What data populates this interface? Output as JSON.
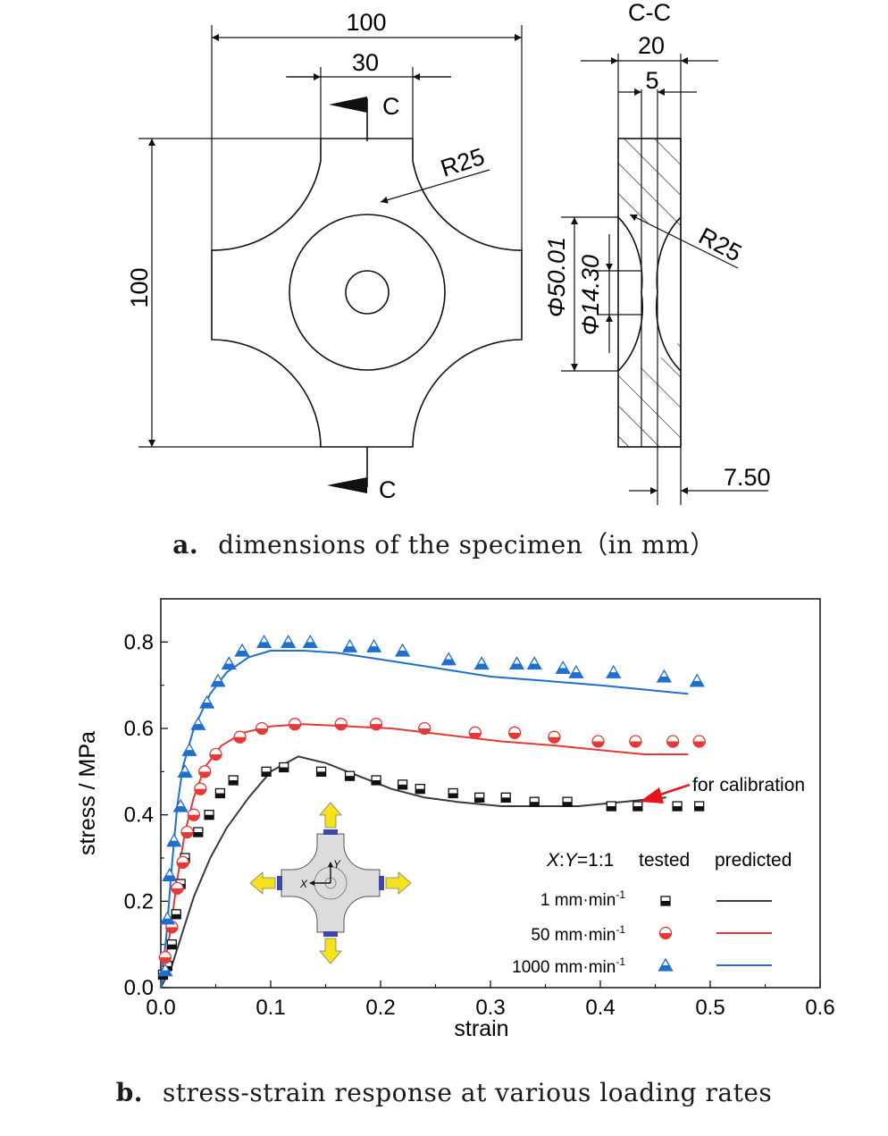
{
  "figure_a": {
    "caption_letter": "a.",
    "caption_text": "dimensions of the specimen（in mm）",
    "dims": {
      "width_top": "100",
      "arm_width": "30",
      "section_top": "C",
      "section_bottom": "C",
      "radius_plan": "R25",
      "height_left": "100",
      "section_title": "C-C",
      "thickness": "20",
      "center_thickness": "5",
      "radius_section": "R25",
      "dia_outer": "Φ50.01",
      "dia_inner": "Φ14.30",
      "offset": "7.50"
    }
  },
  "figure_b": {
    "caption_letter": "b.",
    "caption_text": "stress-strain response at various loading rates",
    "legend": {
      "ratio": "X:Y=1:1",
      "col_tested": "tested",
      "col_predicted": "predicted",
      "rows": [
        {
          "label": "1 mm·min",
          "sup": "-1"
        },
        {
          "label": "50 mm·min",
          "sup": "-1"
        },
        {
          "label": "1000 mm·min",
          "sup": "-1"
        }
      ]
    },
    "annotation": "for calibration",
    "inset": {
      "x_label": "X",
      "y_label": "Y"
    },
    "colors": {
      "s1": "#3a3a3a",
      "s50": "#e53935",
      "s1000": "#1e6fd0",
      "arrow": "#e8141a",
      "inset_arrow": "#f5e21b"
    }
  },
  "chart_data": {
    "type": "line",
    "title": "",
    "xlabel": "strain",
    "ylabel": "stress / MPa",
    "xlim": [
      0.0,
      0.6
    ],
    "ylim": [
      0.0,
      0.9
    ],
    "xticks": [
      "0.0",
      "0.1",
      "0.2",
      "0.3",
      "0.4",
      "0.5",
      "0.6"
    ],
    "yticks": [
      "0.0",
      "0.2",
      "0.4",
      "0.6",
      "0.8"
    ],
    "grid": false,
    "series": [
      {
        "name": "1 mm·min-1",
        "tested": [
          [
            0.002,
            0.03
          ],
          [
            0.006,
            0.05
          ],
          [
            0.01,
            0.1
          ],
          [
            0.014,
            0.17
          ],
          [
            0.018,
            0.24
          ],
          [
            0.022,
            0.3
          ],
          [
            0.034,
            0.36
          ],
          [
            0.044,
            0.4
          ],
          [
            0.054,
            0.45
          ],
          [
            0.066,
            0.48
          ],
          [
            0.096,
            0.5
          ],
          [
            0.112,
            0.51
          ],
          [
            0.146,
            0.5
          ],
          [
            0.172,
            0.49
          ],
          [
            0.196,
            0.48
          ],
          [
            0.22,
            0.47
          ],
          [
            0.236,
            0.46
          ],
          [
            0.266,
            0.45
          ],
          [
            0.29,
            0.44
          ],
          [
            0.314,
            0.44
          ],
          [
            0.34,
            0.43
          ],
          [
            0.37,
            0.43
          ],
          [
            0.41,
            0.42
          ],
          [
            0.434,
            0.42
          ],
          [
            0.47,
            0.42
          ],
          [
            0.49,
            0.42
          ]
        ],
        "predicted": [
          [
            0.0,
            0.0
          ],
          [
            0.01,
            0.05
          ],
          [
            0.02,
            0.13
          ],
          [
            0.03,
            0.21
          ],
          [
            0.045,
            0.3
          ],
          [
            0.06,
            0.37
          ],
          [
            0.08,
            0.44
          ],
          [
            0.1,
            0.5
          ],
          [
            0.125,
            0.535
          ],
          [
            0.15,
            0.52
          ],
          [
            0.18,
            0.49
          ],
          [
            0.21,
            0.46
          ],
          [
            0.24,
            0.44
          ],
          [
            0.27,
            0.43
          ],
          [
            0.31,
            0.42
          ],
          [
            0.34,
            0.42
          ],
          [
            0.38,
            0.42
          ],
          [
            0.42,
            0.43
          ],
          [
            0.46,
            0.44
          ]
        ]
      },
      {
        "name": "50 mm·min-1",
        "tested": [
          [
            0.004,
            0.07
          ],
          [
            0.01,
            0.14
          ],
          [
            0.015,
            0.23
          ],
          [
            0.02,
            0.29
          ],
          [
            0.024,
            0.36
          ],
          [
            0.03,
            0.4
          ],
          [
            0.036,
            0.46
          ],
          [
            0.04,
            0.5
          ],
          [
            0.05,
            0.54
          ],
          [
            0.072,
            0.58
          ],
          [
            0.092,
            0.6
          ],
          [
            0.122,
            0.61
          ],
          [
            0.164,
            0.61
          ],
          [
            0.196,
            0.61
          ],
          [
            0.24,
            0.6
          ],
          [
            0.286,
            0.59
          ],
          [
            0.322,
            0.59
          ],
          [
            0.358,
            0.58
          ],
          [
            0.398,
            0.57
          ],
          [
            0.432,
            0.57
          ],
          [
            0.466,
            0.57
          ],
          [
            0.49,
            0.57
          ]
        ],
        "predicted": [
          [
            0.0,
            0.0
          ],
          [
            0.008,
            0.12
          ],
          [
            0.015,
            0.25
          ],
          [
            0.022,
            0.36
          ],
          [
            0.03,
            0.44
          ],
          [
            0.04,
            0.51
          ],
          [
            0.055,
            0.56
          ],
          [
            0.075,
            0.59
          ],
          [
            0.1,
            0.605
          ],
          [
            0.13,
            0.61
          ],
          [
            0.17,
            0.605
          ],
          [
            0.21,
            0.6
          ],
          [
            0.26,
            0.585
          ],
          [
            0.31,
            0.57
          ],
          [
            0.36,
            0.56
          ],
          [
            0.4,
            0.55
          ],
          [
            0.44,
            0.54
          ],
          [
            0.48,
            0.54
          ]
        ]
      },
      {
        "name": "1000 mm·min-1",
        "tested": [
          [
            0.004,
            0.04
          ],
          [
            0.006,
            0.16
          ],
          [
            0.008,
            0.26
          ],
          [
            0.012,
            0.34
          ],
          [
            0.018,
            0.42
          ],
          [
            0.022,
            0.5
          ],
          [
            0.026,
            0.55
          ],
          [
            0.034,
            0.61
          ],
          [
            0.042,
            0.66
          ],
          [
            0.052,
            0.71
          ],
          [
            0.062,
            0.75
          ],
          [
            0.074,
            0.78
          ],
          [
            0.094,
            0.8
          ],
          [
            0.116,
            0.8
          ],
          [
            0.136,
            0.8
          ],
          [
            0.172,
            0.79
          ],
          [
            0.194,
            0.79
          ],
          [
            0.22,
            0.78
          ],
          [
            0.262,
            0.76
          ],
          [
            0.292,
            0.75
          ],
          [
            0.324,
            0.75
          ],
          [
            0.34,
            0.75
          ],
          [
            0.366,
            0.74
          ],
          [
            0.378,
            0.73
          ],
          [
            0.412,
            0.73
          ],
          [
            0.458,
            0.72
          ],
          [
            0.488,
            0.71
          ]
        ],
        "predicted": [
          [
            0.0,
            0.0
          ],
          [
            0.005,
            0.12
          ],
          [
            0.01,
            0.28
          ],
          [
            0.015,
            0.42
          ],
          [
            0.02,
            0.51
          ],
          [
            0.03,
            0.6
          ],
          [
            0.045,
            0.68
          ],
          [
            0.06,
            0.73
          ],
          [
            0.08,
            0.765
          ],
          [
            0.1,
            0.78
          ],
          [
            0.13,
            0.78
          ],
          [
            0.16,
            0.775
          ],
          [
            0.2,
            0.76
          ],
          [
            0.25,
            0.74
          ],
          [
            0.3,
            0.72
          ],
          [
            0.35,
            0.71
          ],
          [
            0.4,
            0.7
          ],
          [
            0.44,
            0.69
          ],
          [
            0.48,
            0.68
          ]
        ]
      }
    ]
  }
}
